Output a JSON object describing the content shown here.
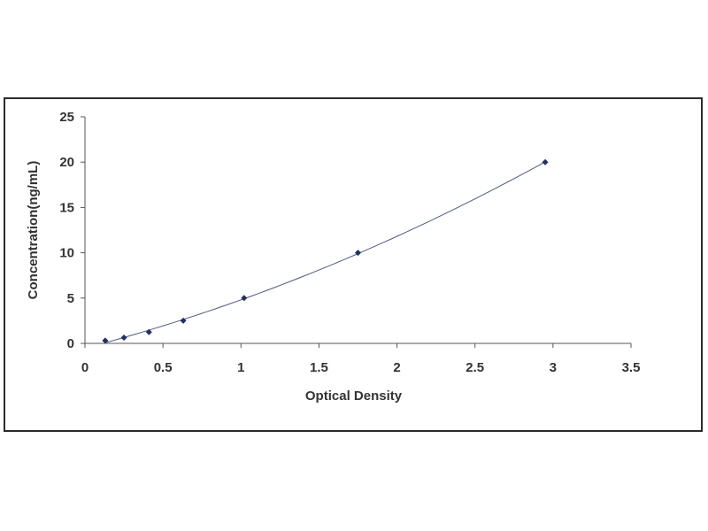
{
  "chart_data": {
    "type": "scatter",
    "xlabel": "Optical Density",
    "ylabel": "Concentration(ng/mL)",
    "xlim": [
      0,
      3.5
    ],
    "ylim": [
      0,
      25
    ],
    "xticks": [
      "0",
      "0.5",
      "1",
      "1.5",
      "2",
      "2.5",
      "3",
      "3.5"
    ],
    "yticks": [
      "0",
      "5",
      "10",
      "15",
      "20",
      "25"
    ],
    "grid": false,
    "legend": "none",
    "fit_line": true,
    "marker_color": "#1f2f6b",
    "line_color": "#4a5a8a",
    "series": [
      {
        "x": [
          0.13,
          0.25,
          0.41,
          0.63,
          1.02,
          1.75,
          2.95
        ],
        "y": [
          0.31,
          0.63,
          1.25,
          2.5,
          5,
          10,
          20
        ]
      }
    ]
  }
}
